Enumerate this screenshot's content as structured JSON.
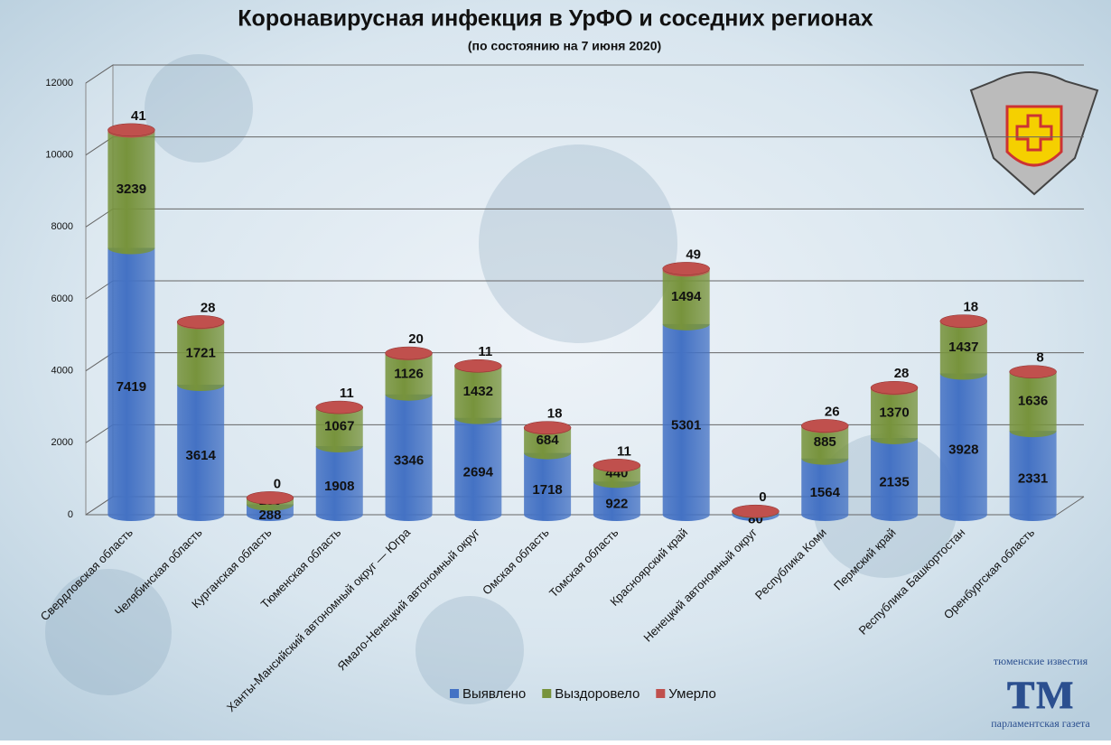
{
  "chart_data": {
    "type": "stacked-cylinder-bar",
    "title": "Коронавирусная инфекция в УрФО и соседних регионах",
    "subtitle": "(по состоянию на 7 июня 2020)",
    "categories": [
      "Свердловская область",
      "Челябинская область",
      "Курганская область",
      "Тюменская область",
      "Ханты-Мансийский автономный округ — Югра",
      "Ямало-Ненецкий автономный округ",
      "Омская область",
      "Томская область",
      "Красноярский край",
      "Ненецкий автономный округ",
      "Республика Коми",
      "Пермский край",
      "Республика Башкортостан",
      "Оренбургская область"
    ],
    "series": [
      {
        "name": "Выявлено",
        "color": "#4472c4",
        "values": [
          7419,
          3614,
          288,
          1908,
          3346,
          2694,
          1718,
          922,
          5301,
          80,
          1564,
          2135,
          3928,
          2331
        ]
      },
      {
        "name": "Выздоровело",
        "color": "#77933c",
        "values": [
          3239,
          1721,
          180,
          1067,
          1126,
          1432,
          684,
          440,
          1494,
          16,
          885,
          1370,
          1437,
          1636
        ]
      },
      {
        "name": "Умерло",
        "color": "#c0504d",
        "values": [
          41,
          28,
          0,
          11,
          20,
          11,
          18,
          11,
          49,
          0,
          26,
          28,
          18,
          8
        ]
      }
    ],
    "ylim": [
      0,
      12000
    ],
    "yticks": [
      0,
      2000,
      4000,
      6000,
      8000,
      10000,
      12000
    ],
    "grid": true,
    "legend": "bottom"
  },
  "logo": {
    "top": "тюменские известия",
    "mark": "тм",
    "bottom": "парламентская газета"
  }
}
